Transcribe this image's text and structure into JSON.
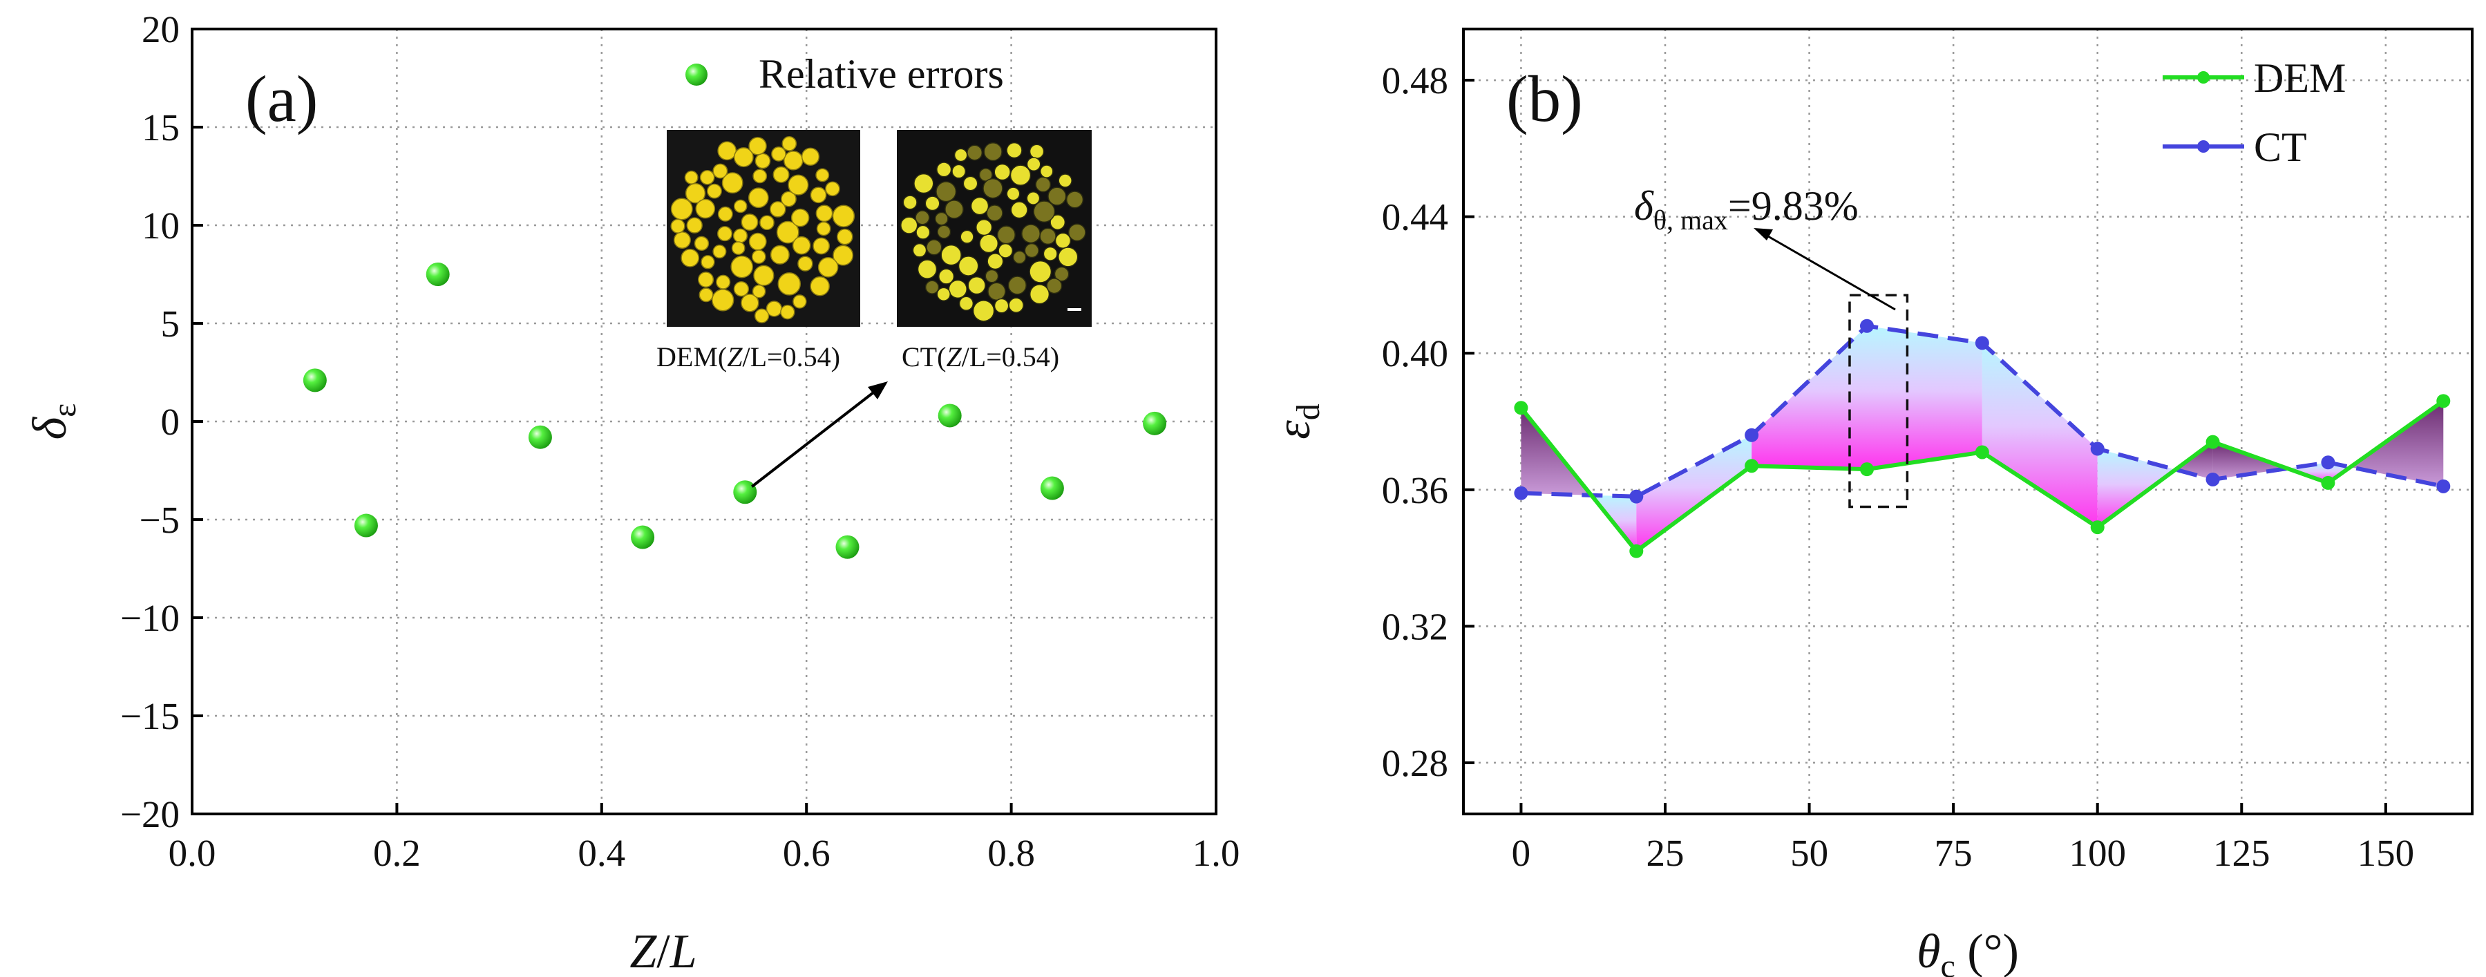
{
  "chart_data": [
    {
      "type": "scatter",
      "panel_label": "(a)",
      "xlabel_italic": "Z",
      "xlabel_rest": "/",
      "xlabel_italic2": "L",
      "ylabel_main": "δ",
      "ylabel_sub": "ε",
      "xlim": [
        0.0,
        1.0
      ],
      "ylim": [
        -20,
        20
      ],
      "xticks": [
        "0.0",
        "0.2",
        "0.4",
        "0.6",
        "0.8",
        "1.0"
      ],
      "yticks": [
        "20",
        "15",
        "10",
        "5",
        "0",
        "−5",
        "−10",
        "−15",
        "−20"
      ],
      "grid": true,
      "legend": "Relative errors",
      "marker_color": "#33ee22",
      "points": [
        {
          "x": 0.12,
          "y": 2.1
        },
        {
          "x": 0.17,
          "y": -5.3
        },
        {
          "x": 0.24,
          "y": 7.5
        },
        {
          "x": 0.34,
          "y": -0.8
        },
        {
          "x": 0.44,
          "y": -5.9
        },
        {
          "x": 0.54,
          "y": -3.6
        },
        {
          "x": 0.64,
          "y": -6.4
        },
        {
          "x": 0.74,
          "y": 0.3
        },
        {
          "x": 0.84,
          "y": -3.4
        },
        {
          "x": 0.94,
          "y": -0.1
        }
      ],
      "annotation_point": {
        "x": 0.54,
        "y": -3.6
      },
      "insets": [
        {
          "label_pre": "DEM(",
          "label_italic": "Z",
          "label_post": "/L=0.54)",
          "style": "DEM"
        },
        {
          "label_pre": "CT(",
          "label_italic": "Z",
          "label_post": "/L=0.54)",
          "style": "CT"
        }
      ]
    },
    {
      "type": "line",
      "panel_label": "(b)",
      "xlabel_main": "θ",
      "xlabel_sub": "c",
      "xlabel_unit": " (°)",
      "ylabel_main": "ε",
      "ylabel_sub": "d",
      "xlim": [
        -10,
        165
      ],
      "ylim": [
        0.265,
        0.495
      ],
      "xticks": [
        0,
        25,
        50,
        75,
        100,
        125,
        150
      ],
      "yticks": [
        "0.28",
        "0.32",
        "0.36",
        "0.40",
        "0.44",
        "0.48"
      ],
      "ytick_values": [
        0.28,
        0.32,
        0.36,
        0.4,
        0.44,
        0.48
      ],
      "grid": true,
      "x": [
        0,
        20,
        40,
        60,
        80,
        100,
        120,
        140,
        160
      ],
      "series": [
        {
          "name": "DEM",
          "color": "#22dd22",
          "dash": false,
          "values": [
            0.384,
            0.342,
            0.367,
            0.366,
            0.371,
            0.349,
            0.374,
            0.362,
            0.386
          ]
        },
        {
          "name": "CT",
          "color": "#4444dd",
          "dash": true,
          "values": [
            0.359,
            0.358,
            0.376,
            0.408,
            0.403,
            0.372,
            0.363,
            0.368,
            0.361
          ]
        }
      ],
      "annotation": {
        "text_main": "δ",
        "text_sub": "θ, max",
        "text_value": "=9.83%",
        "box_x": [
          57,
          67
        ],
        "box_y": [
          0.355,
          0.417
        ]
      }
    }
  ]
}
